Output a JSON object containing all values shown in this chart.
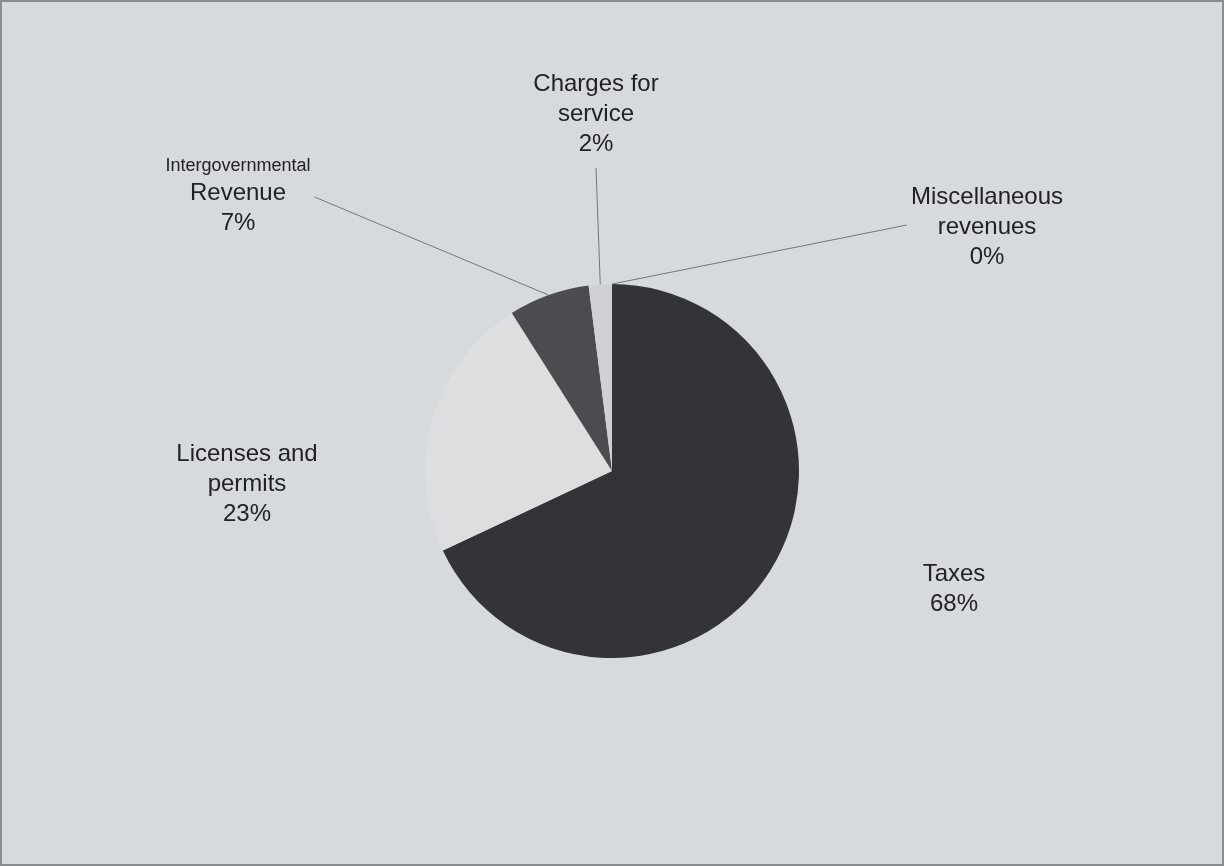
{
  "chart_data": {
    "type": "pie",
    "categories": [
      "Taxes",
      "Licenses and permits",
      "Intergovernmental Revenue",
      "Charges for service",
      "Miscellaneous revenues"
    ],
    "values": [
      68,
      23,
      7,
      2,
      0
    ],
    "value_labels": [
      "68%",
      "23%",
      "7%",
      "2%",
      "0%"
    ],
    "colors": [
      "#333437",
      "#dcdee0",
      "#4b4c50",
      "#cfd1d4",
      "#9a9c9f"
    ],
    "legend": false
  }
}
